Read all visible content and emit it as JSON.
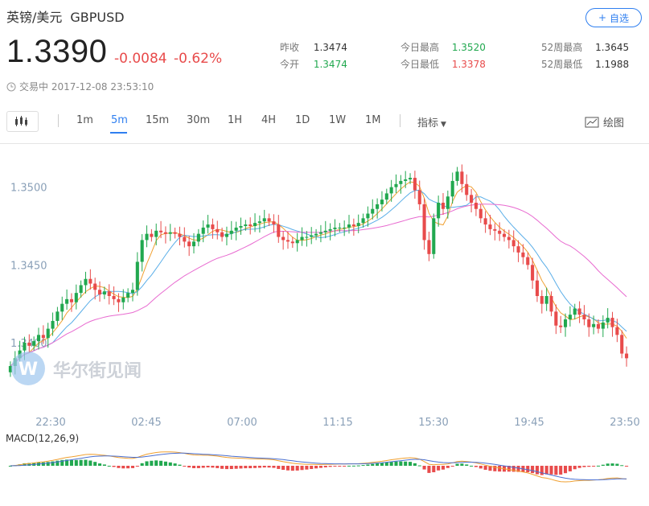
{
  "header": {
    "name": "英镑/美元",
    "symbol": "GBPUSD",
    "watch_label": "自选",
    "price": "1.3390",
    "change": "-0.0084",
    "change_pct": "-0.62%",
    "status": "交易中 2017-12-08 23:53:10"
  },
  "stats": {
    "prev_close_label": "昨收",
    "prev_close": "1.3474",
    "open_label": "今开",
    "open": "1.3474",
    "high_label": "今日最高",
    "high": "1.3520",
    "low_label": "今日最低",
    "low": "1.3378",
    "w52_high_label": "52周最高",
    "w52_high": "1.3645",
    "w52_low_label": "52周最低",
    "w52_low": "1.1988"
  },
  "toolbar": {
    "periods": [
      "1m",
      "5m",
      "15m",
      "30m",
      "1H",
      "4H",
      "1D",
      "1W",
      "1M"
    ],
    "active_period": "5m",
    "indicator_label": "指标",
    "draw_label": "绘图"
  },
  "watermark": "华尔街见闻",
  "colors": {
    "up": "#21a84f",
    "down": "#e84b4b",
    "accent": "#2f7ff0",
    "ma_short": "#f0a030",
    "ma_mid": "#5aaee8",
    "ma_long": "#e86ad0"
  },
  "chart_data": {
    "type": "candlestick",
    "ylim": [
      1.337,
      1.352
    ],
    "yticks": [
      "1.3400",
      "1.3450",
      "1.3500"
    ],
    "xticks": [
      "22:30",
      "02:45",
      "07:00",
      "11:15",
      "15:30",
      "19:45",
      "23:50"
    ],
    "close": [
      1.3385,
      1.339,
      1.3395,
      1.34,
      1.3398,
      1.3401,
      1.3405,
      1.3403,
      1.3409,
      1.3414,
      1.342,
      1.3425,
      1.3428,
      1.3426,
      1.3432,
      1.3437,
      1.3441,
      1.3438,
      1.3434,
      1.3431,
      1.3433,
      1.343,
      1.3428,
      1.3426,
      1.3429,
      1.3432,
      1.3434,
      1.3452,
      1.3466,
      1.347,
      1.3468,
      1.3472,
      1.3471,
      1.347,
      1.3471,
      1.347,
      1.3468,
      1.3465,
      1.3462,
      1.3465,
      1.347,
      1.3474,
      1.3476,
      1.3473,
      1.3471,
      1.3468,
      1.347,
      1.3472,
      1.3474,
      1.3475,
      1.3476,
      1.3475,
      1.3477,
      1.3478,
      1.348,
      1.3478,
      1.3476,
      1.3468,
      1.3466,
      1.3465,
      1.3464,
      1.3466,
      1.3468,
      1.3468,
      1.3469,
      1.347,
      1.3471,
      1.3472,
      1.3473,
      1.3474,
      1.3474,
      1.3474,
      1.3476,
      1.3475,
      1.3477,
      1.348,
      1.3483,
      1.3486,
      1.3489,
      1.3492,
      1.3496,
      1.35,
      1.3502,
      1.3504,
      1.3505,
      1.3506,
      1.3498,
      1.3489,
      1.3466,
      1.3457,
      1.348,
      1.349,
      1.3486,
      1.3494,
      1.3504,
      1.351,
      1.3502,
      1.3495,
      1.349,
      1.3486,
      1.348,
      1.3476,
      1.3473,
      1.3472,
      1.347,
      1.3468,
      1.3466,
      1.3462,
      1.3458,
      1.3455,
      1.345,
      1.344,
      1.343,
      1.3425,
      1.343,
      1.342,
      1.3411,
      1.341,
      1.3415,
      1.3418,
      1.3422,
      1.3418,
      1.3415,
      1.341,
      1.3412,
      1.3409,
      1.3413,
      1.3416,
      1.341,
      1.3405,
      1.3393,
      1.339
    ],
    "series": [
      {
        "name": "MA short",
        "color": "#f0a030"
      },
      {
        "name": "MA mid",
        "color": "#5aaee8"
      },
      {
        "name": "MA long",
        "color": "#e86ad0"
      }
    ],
    "macd_label": "MACD(12,26,9)"
  }
}
